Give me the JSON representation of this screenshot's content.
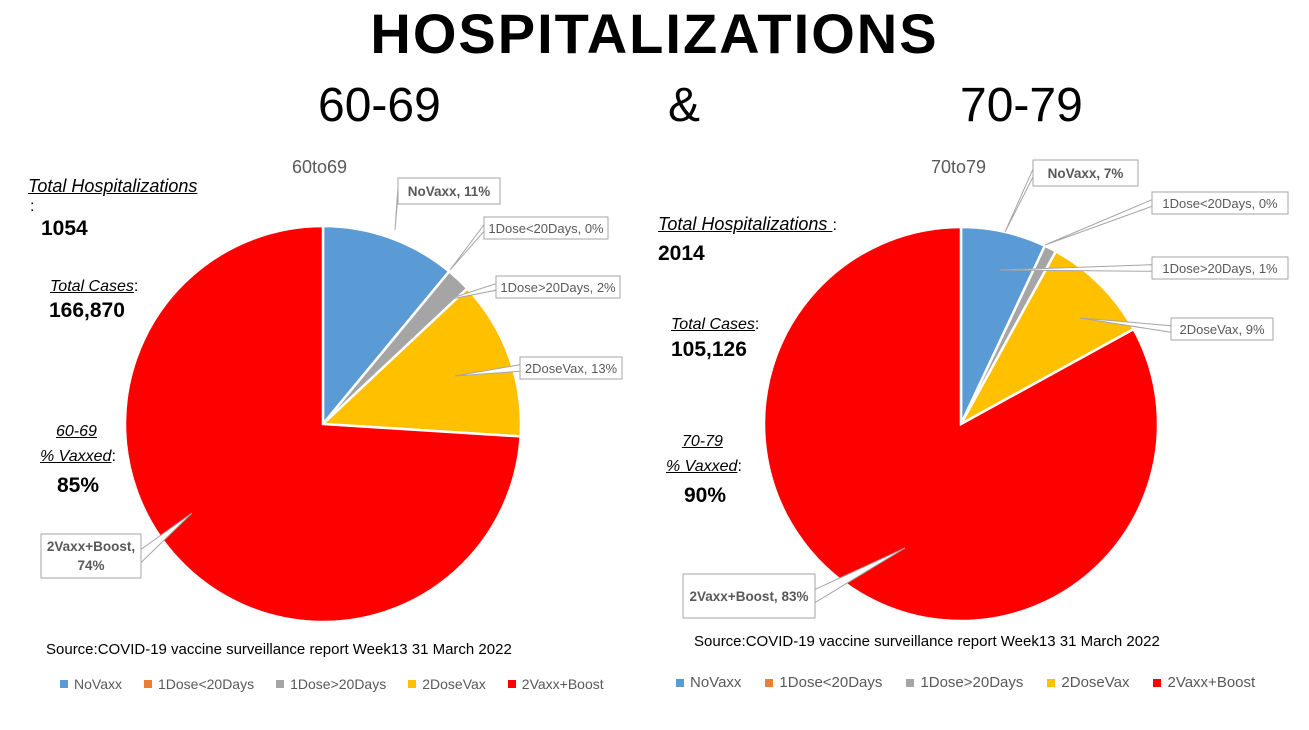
{
  "title": "HOSPITALIZATIONS",
  "left_age_label": "60-69",
  "ampersand": "&",
  "right_age_label": "70-79",
  "colors": {
    "NoVaxx": "#5b9bd5",
    "1Dose<20Days": "#ed7d31",
    "1Dose>20Days": "#a5a5a5",
    "2DoseVax": "#ffc000",
    "2Vaxx+Boost": "#ff0000"
  },
  "left_panel": {
    "total_hosp_label": "Total Hospitalizations",
    "total_hosp_colon": ":",
    "total_hosp_value": "1054",
    "total_cases_label": "Total Cases",
    "total_cases_colon": ":",
    "total_cases_value": "166,870",
    "vaxxed_age": "60-69",
    "vaxxed_label": "% Vaxxed",
    "vaxxed_colon": ":",
    "vaxxed_value": "85%",
    "source": "Source:COVID-19 vaccine surveillance report Week13  31 March 2022"
  },
  "right_panel": {
    "total_hosp_label": "Total Hospitalizations ",
    "total_hosp_colon": ":",
    "total_hosp_value": "2014",
    "total_cases_label": "Total Cases",
    "total_cases_colon": ":",
    "total_cases_value": "105,126",
    "vaxxed_age": "70-79",
    "vaxxed_label": "% Vaxxed",
    "vaxxed_colon": ":",
    "vaxxed_value": "90%",
    "source": "Source:COVID-19 vaccine surveillance report Week13  31 March 2022"
  },
  "chart_data": [
    {
      "type": "pie",
      "title": "60to69",
      "categories": [
        "NoVaxx",
        "1Dose<20Days",
        "1Dose>20Days",
        "2DoseVax",
        "2Vaxx+Boost"
      ],
      "values": [
        11,
        0,
        2,
        13,
        74
      ],
      "data_labels": [
        "NoVaxx, 11%",
        "1Dose<20Days, 0%",
        "1Dose>20Days, 2%",
        "2DoseVax, 13%",
        "2Vaxx+Boost, 74%"
      ],
      "legend": "bottom"
    },
    {
      "type": "pie",
      "title": "70to79",
      "categories": [
        "NoVaxx",
        "1Dose<20Days",
        "1Dose>20Days",
        "2DoseVax",
        "2Vaxx+Boost"
      ],
      "values": [
        7,
        0,
        1,
        9,
        83
      ],
      "data_labels": [
        "NoVaxx, 7%",
        "1Dose<20Days, 0%",
        "1Dose>20Days, 1%",
        "2DoseVax, 9%",
        "2Vaxx+Boost, 83%"
      ],
      "legend": "bottom"
    }
  ]
}
